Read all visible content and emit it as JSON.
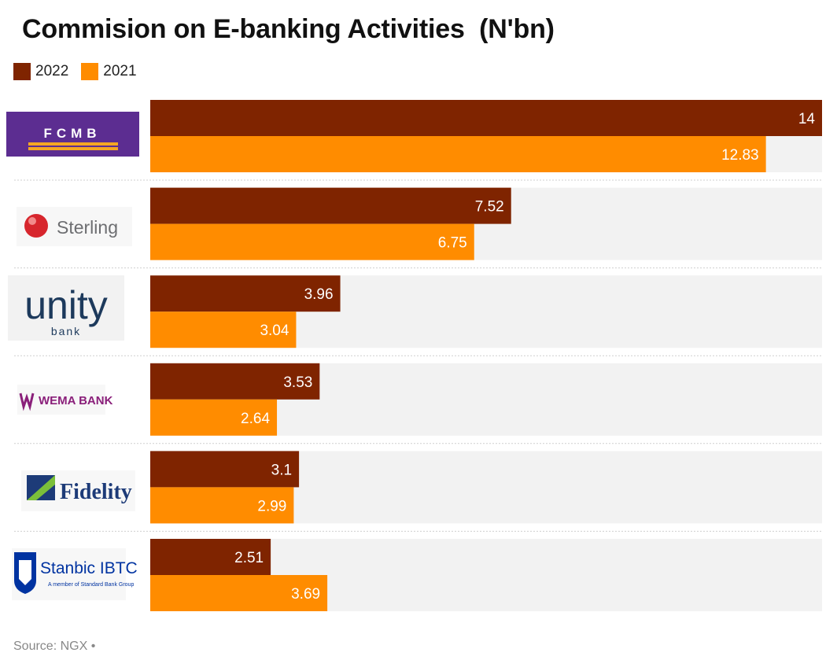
{
  "title": "Commision on E-banking Activities  (N'bn)",
  "legend": [
    {
      "label": "2022",
      "color": "#7f2400"
    },
    {
      "label": "2021",
      "color": "#ff8c00"
    }
  ],
  "source": "Source: NGX •",
  "colors": {
    "track": "#f2f2f2",
    "separator": "#cfcfcf"
  },
  "logos": {
    "fcmb": "FCMB",
    "sterling": "Sterling",
    "unity_main": "unity",
    "unity_sub": "bank",
    "wema": "WEMA BANK",
    "fidelity": "Fidelity",
    "stanbic": "Stanbic IBTC",
    "stanbic_sub": "A member of Standard Bank Group"
  },
  "chart_data": {
    "type": "bar",
    "orientation": "horizontal",
    "categories": [
      "FCMB",
      "Sterling",
      "Unity Bank",
      "Wema Bank",
      "Fidelity",
      "Stanbic IBTC"
    ],
    "series": [
      {
        "name": "2022",
        "values": [
          14,
          7.52,
          3.96,
          3.53,
          3.1,
          2.51
        ],
        "labels": [
          "14",
          "7.52",
          "3.96",
          "3.53",
          "3.1",
          "2.51"
        ]
      },
      {
        "name": "2021",
        "values": [
          12.83,
          6.75,
          3.04,
          2.64,
          2.99,
          3.69
        ],
        "labels": [
          "12.83",
          "6.75",
          "3.04",
          "2.64",
          "2.99",
          "3.69"
        ]
      }
    ],
    "xlim": [
      0,
      14
    ],
    "legend_position": "top-left",
    "grid": false
  }
}
